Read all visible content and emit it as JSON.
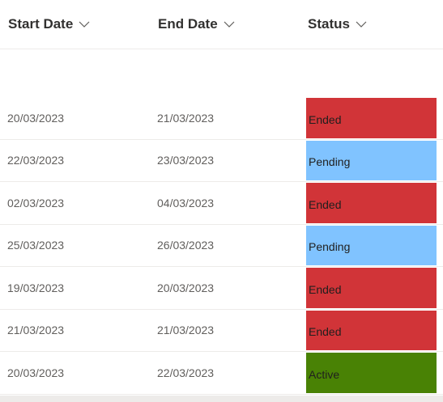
{
  "columns": {
    "start_date": "Start Date",
    "end_date": "End Date",
    "status": "Status"
  },
  "status_colors": {
    "Ended": "#d13438",
    "Pending": "#80c3ff",
    "Active": "#498205"
  },
  "rows": [
    {
      "start": "20/03/2023",
      "end": "21/03/2023",
      "status": "Ended"
    },
    {
      "start": "22/03/2023",
      "end": "23/03/2023",
      "status": "Pending"
    },
    {
      "start": "02/03/2023",
      "end": "04/03/2023",
      "status": "Ended"
    },
    {
      "start": "25/03/2023",
      "end": "26/03/2023",
      "status": "Pending"
    },
    {
      "start": "19/03/2023",
      "end": "20/03/2023",
      "status": "Ended"
    },
    {
      "start": "21/03/2023",
      "end": "21/03/2023",
      "status": "Ended"
    },
    {
      "start": "20/03/2023",
      "end": "22/03/2023",
      "status": "Active"
    }
  ]
}
